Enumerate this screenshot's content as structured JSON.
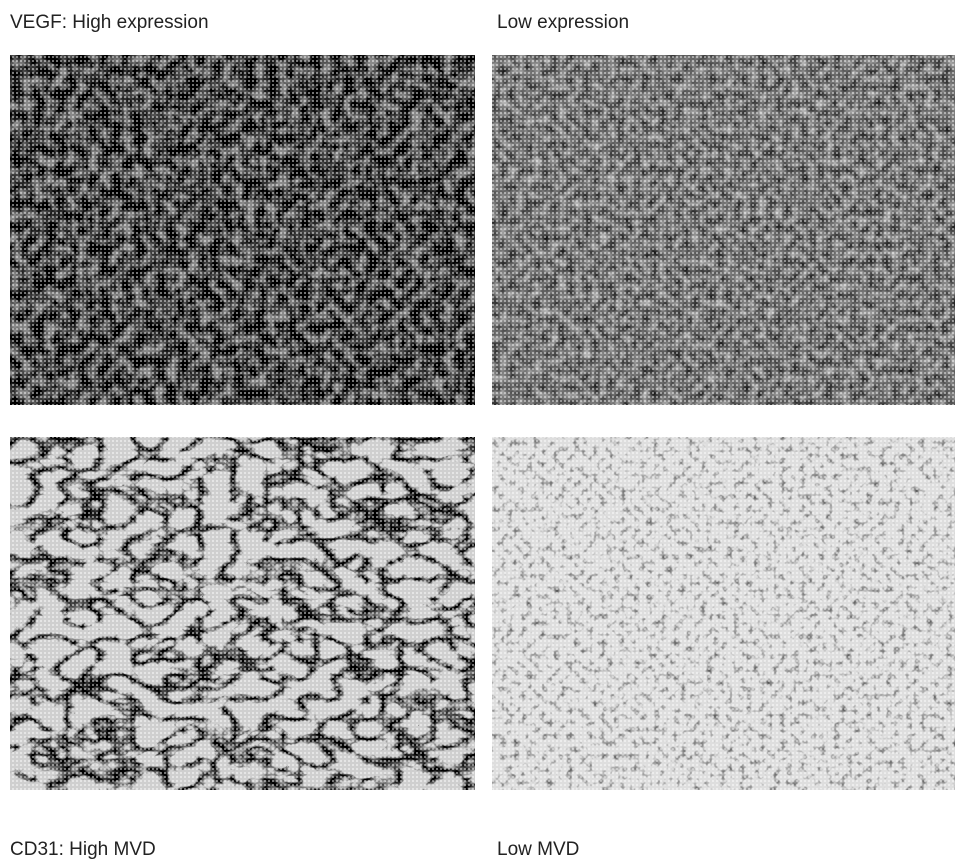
{
  "panels": [
    {
      "label": "VEGF: High expression"
    },
    {
      "label": "Low expression"
    },
    {
      "label": "CD31: High MVD"
    },
    {
      "label": "Low MVD"
    }
  ]
}
